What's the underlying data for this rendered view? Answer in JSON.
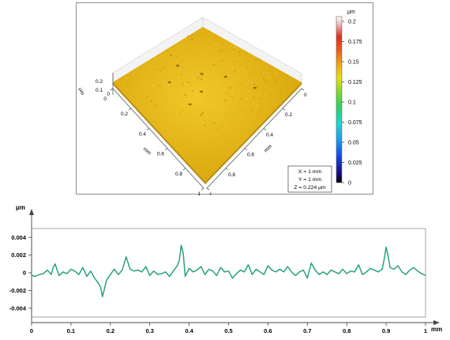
{
  "colors": {
    "surface_face": "#e3b512",
    "surface_shade": "#c99b0a",
    "profile_line": "#2aa277",
    "axis": "#444444",
    "grid": "#d9d9d9",
    "panel_border": "#8c8c8c"
  },
  "surface_3d": {
    "z_axis": {
      "unit": "μm",
      "ticks": [
        "0",
        "0.1",
        "0.2"
      ]
    },
    "x_axis": {
      "unit": "mm",
      "ticks": [
        "0",
        "0.2",
        "0.4",
        "0.6",
        "0.8",
        "1"
      ]
    },
    "y_axis": {
      "unit": "mm",
      "ticks": [
        "0",
        "0.2",
        "0.4",
        "0.6",
        "0.8",
        "1"
      ]
    },
    "colorbar": {
      "unit": "μm",
      "ticks": [
        "0.2",
        "0.175",
        "0.15",
        "0.125",
        "0.1",
        "0.075",
        "0.05",
        "0.025",
        "0"
      ]
    },
    "info_box": {
      "x": "X = 1 mm",
      "y": "Y = 1 mm",
      "z": "Z = 0.224 μm"
    }
  },
  "chart_data": {
    "type": "line",
    "title": "",
    "xlabel": "mm",
    "ylabel": "μm",
    "xlim": [
      0,
      1
    ],
    "ylim": [
      -0.005,
      0.005
    ],
    "x_ticks": [
      0,
      0.1,
      0.2,
      0.3,
      0.4,
      0.5,
      0.6,
      0.7,
      0.8,
      0.9,
      1
    ],
    "x_tick_labels": [
      "0",
      "0.1",
      "0.2",
      "0.3",
      "0.4",
      "0.5",
      "0.6",
      "0.7",
      "0.8",
      "0.9",
      "1"
    ],
    "y_ticks": [
      0.004,
      0.002,
      0,
      -0.002,
      -0.004
    ],
    "y_tick_labels": [
      "0.004",
      "0.002",
      "0",
      "-0.002",
      "-0.004"
    ],
    "grid": "off",
    "series": [
      {
        "x": [
          0,
          0.01,
          0.02,
          0.03,
          0.04,
          0.05,
          0.055,
          0.06,
          0.065,
          0.07,
          0.08,
          0.09,
          0.1,
          0.11,
          0.12,
          0.13,
          0.14,
          0.15,
          0.16,
          0.17,
          0.175,
          0.18,
          0.185,
          0.19,
          0.2,
          0.21,
          0.22,
          0.23,
          0.24,
          0.245,
          0.25,
          0.26,
          0.27,
          0.28,
          0.29,
          0.3,
          0.31,
          0.32,
          0.33,
          0.34,
          0.35,
          0.36,
          0.37,
          0.375,
          0.38,
          0.385,
          0.39,
          0.4,
          0.41,
          0.42,
          0.43,
          0.44,
          0.45,
          0.46,
          0.47,
          0.48,
          0.49,
          0.5,
          0.51,
          0.52,
          0.53,
          0.54,
          0.55,
          0.56,
          0.57,
          0.58,
          0.59,
          0.6,
          0.61,
          0.62,
          0.63,
          0.64,
          0.65,
          0.66,
          0.67,
          0.68,
          0.69,
          0.7,
          0.71,
          0.72,
          0.73,
          0.74,
          0.75,
          0.76,
          0.77,
          0.78,
          0.79,
          0.8,
          0.81,
          0.82,
          0.83,
          0.84,
          0.85,
          0.86,
          0.87,
          0.88,
          0.89,
          0.895,
          0.9,
          0.905,
          0.91,
          0.92,
          0.93,
          0.94,
          0.95,
          0.96,
          0.97,
          0.98,
          0.99,
          1
        ],
        "y": [
          -0.0003,
          -0.0004,
          -0.0002,
          -0.0001,
          0.0003,
          -0.0002,
          0.0006,
          0.001,
          0.0003,
          -0.0003,
          0.0001,
          -0.0001,
          0.0004,
          0.0002,
          -0.0002,
          0.0006,
          -0.0004,
          0.0002,
          -0.0006,
          -0.0012,
          -0.0016,
          -0.0027,
          -0.0018,
          -0.0009,
          -0.0002,
          0.0004,
          -0.0002,
          0.0003,
          0.0018,
          0.0011,
          0.0004,
          0.0002,
          0.0003,
          0.0001,
          0.0007,
          -0.0003,
          0.0002,
          -0.0002,
          -0.0001,
          0.0001,
          -0.0004,
          0.0002,
          0.0008,
          0.0014,
          0.0031,
          0.0022,
          -0.0004,
          0.0005,
          0.0001,
          0.0003,
          0.0007,
          -0.0002,
          0.0004,
          0.0002,
          -0.0003,
          0.0006,
          0.0001,
          0.0002,
          -0.0006,
          -0.0001,
          0.0003,
          0.0001,
          0.0009,
          -0.0002,
          0.0004,
          0.0001,
          -0.0002,
          0.0008,
          0.0003,
          0.0001,
          0.0004,
          0.0001,
          0.0007,
          0.0001,
          -0.0003,
          0.0001,
          0.0003,
          -0.0006,
          0.0011,
          0.0003,
          -0.0002,
          0.0001,
          -0.0002,
          0.0003,
          0.0001,
          -0.0001,
          0.0004,
          -0.0001,
          0.0002,
          0.0001,
          0.0009,
          -0.0002,
          0.0001,
          0.0005,
          0.0003,
          0.0001,
          0.0004,
          0.0015,
          0.0029,
          0.0019,
          0.0006,
          0.0004,
          0.0008,
          0.0001,
          -0.0002,
          0.0003,
          0.0006,
          0.0002,
          -0.0001,
          -0.0003
        ]
      }
    ]
  }
}
